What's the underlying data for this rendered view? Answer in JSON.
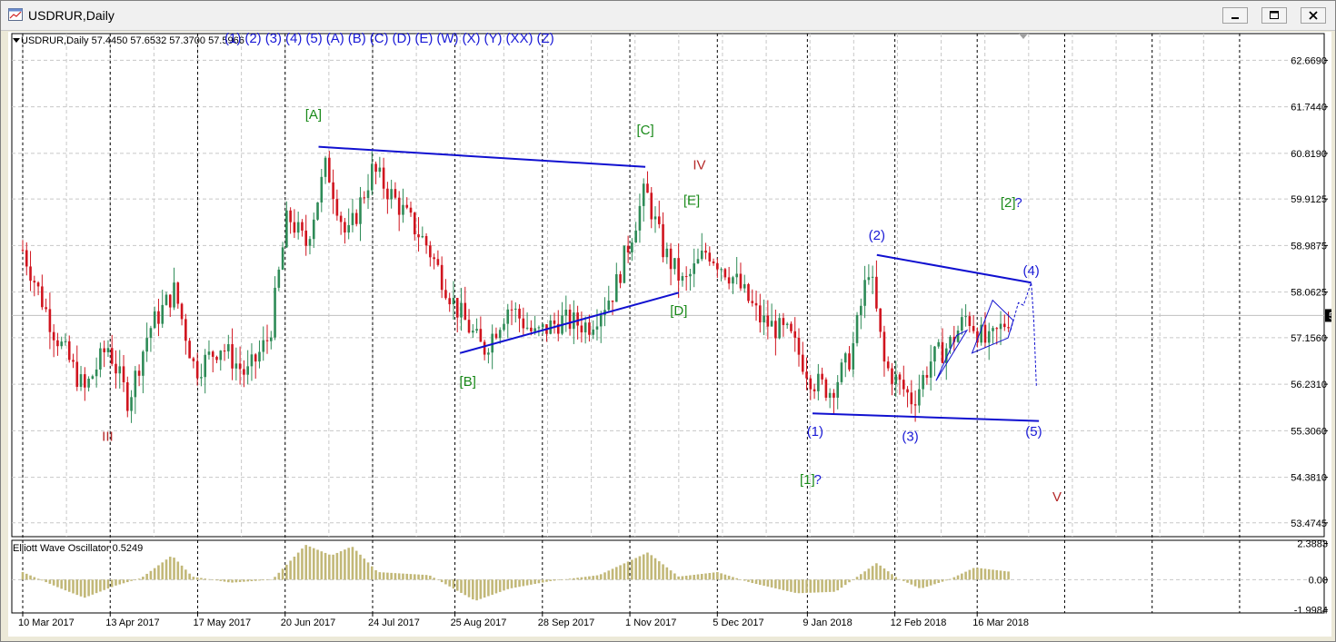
{
  "window": {
    "title": "USDRUR,Daily"
  },
  "header": {
    "symbol_line": "USDRUR,Daily  57.4450 57.6532 57.3700 57.5966",
    "wave_menu": [
      "(1)",
      "(2)",
      "(3)",
      "(4)",
      "(5)",
      "(A)",
      "(B)",
      "(C)",
      "(D)",
      "(E)",
      "(W)",
      "(X)",
      "(Y)",
      "(XX)",
      "(Z)"
    ]
  },
  "colors": {
    "bull": "#2e8b57",
    "bear": "#d0141e",
    "trend": "#1010d0",
    "green_label": "#1a8a1a",
    "red_label": "#b42828",
    "blue_label": "#1a1ad6",
    "histogram": "#c2b878",
    "current_price_bg": "#000000"
  },
  "chart_data": [
    {
      "type": "candlestick",
      "title": "USDRUR,Daily",
      "ohlc_last": {
        "open": 57.445,
        "high": 57.6532,
        "low": 57.37,
        "close": 57.5966
      },
      "current_price_label": "57.5966",
      "y_ticks": [
        "62.6690",
        "61.7440",
        "60.8190",
        "59.9125",
        "58.9875",
        "58.0625",
        "57.1560",
        "56.2310",
        "55.3060",
        "54.3810",
        "53.4745"
      ],
      "y_tick_values": [
        62.669,
        61.744,
        60.819,
        59.9125,
        58.9875,
        58.0625,
        57.156,
        56.231,
        55.306,
        54.381,
        53.4745
      ],
      "ylim": [
        53.2,
        63.2
      ],
      "x_ticks": [
        "10 Mar 2017",
        "13 Apr 2017",
        "17 May 2017",
        "20 Jun 2017",
        "24 Jul 2017",
        "25 Aug 2017",
        "28 Sep 2017",
        "1 Nov 2017",
        "5 Dec 2017",
        "9 Jan 2018",
        "12 Feb 2018",
        "16 Mar 2018"
      ],
      "grid": true,
      "wave_labels": [
        {
          "text": "[A]",
          "date": "2017-07-01",
          "price": 61.5,
          "color": "green"
        },
        {
          "text": "[B]",
          "date": "2017-08-30",
          "price": 56.2,
          "color": "green"
        },
        {
          "text": "[C]",
          "date": "2017-11-07",
          "price": 61.2,
          "color": "green"
        },
        {
          "text": "[D]",
          "date": "2017-11-20",
          "price": 57.6,
          "color": "green"
        },
        {
          "text": "[E]",
          "date": "2017-11-25",
          "price": 59.8,
          "color": "green"
        },
        {
          "text": "IV",
          "date": "2017-11-28",
          "price": 60.5,
          "color": "red"
        },
        {
          "text": "III",
          "date": "2017-04-12",
          "price": 55.1,
          "color": "red"
        },
        {
          "text": "(1)",
          "date": "2018-01-12",
          "price": 55.2,
          "color": "blue"
        },
        {
          "text": "(2)",
          "date": "2018-02-05",
          "price": 59.1,
          "color": "blue"
        },
        {
          "text": "(3)",
          "date": "2018-02-18",
          "price": 55.1,
          "color": "blue"
        },
        {
          "text": "(4)",
          "date": "2018-04-06",
          "price": 58.4,
          "color": "blue"
        },
        {
          "text": "(5)",
          "date": "2018-04-07",
          "price": 55.2,
          "color": "blue"
        },
        {
          "text": "[1]",
          "date": "2018-01-09",
          "price": 54.25,
          "color": "green"
        },
        {
          "text": "?",
          "date": "2018-01-13",
          "price": 54.25,
          "color": "blue"
        },
        {
          "text": "[2]",
          "date": "2018-03-28",
          "price": 59.75,
          "color": "green"
        },
        {
          "text": "?",
          "date": "2018-04-01",
          "price": 59.75,
          "color": "blue"
        },
        {
          "text": "V",
          "date": "2018-04-16",
          "price": 53.9,
          "color": "red"
        }
      ]
    },
    {
      "type": "bar",
      "title": "Elliott Wave Oscillator 0.5249",
      "series": [
        {
          "name": "Elliott Wave Oscillator",
          "last_value": 0.5249
        }
      ],
      "y_ticks": [
        "2.3883",
        "0.00",
        "-1.9984"
      ],
      "y_tick_values": [
        2.3883,
        0,
        -1.9984
      ],
      "ylim": [
        -2.2,
        2.6
      ]
    }
  ]
}
